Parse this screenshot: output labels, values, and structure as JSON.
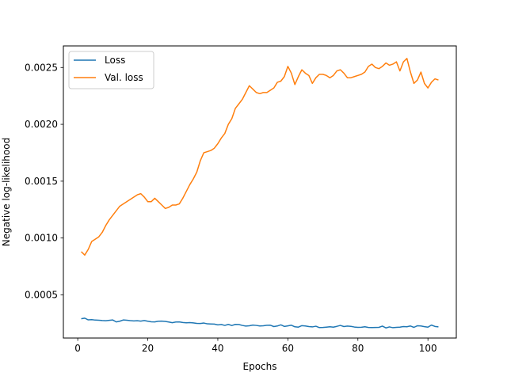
{
  "chart_data": {
    "type": "line",
    "title": "",
    "xlabel": "Epochs",
    "ylabel": "Negative log-likelihood",
    "xlim": [
      -4.1,
      108.1
    ],
    "ylim": [
      0.00012,
      0.00269
    ],
    "x_ticks": [
      0,
      20,
      40,
      60,
      80,
      100
    ],
    "y_ticks": [
      0.0005,
      0.001,
      0.0015,
      0.002,
      0.0025
    ],
    "x_tick_labels": [
      "0",
      "20",
      "40",
      "60",
      "80",
      "100"
    ],
    "y_tick_labels": [
      "0.0005",
      "0.0010",
      "0.0015",
      "0.0020",
      "0.0025"
    ],
    "grid": false,
    "legend_position": "top-left",
    "series": [
      {
        "name": "Loss",
        "color": "#1f77b4",
        "x": [
          1,
          2,
          3,
          4,
          5,
          6,
          7,
          8,
          9,
          10,
          11,
          12,
          13,
          14,
          15,
          16,
          17,
          18,
          19,
          20,
          21,
          22,
          23,
          24,
          25,
          26,
          27,
          28,
          29,
          30,
          31,
          32,
          33,
          34,
          35,
          36,
          37,
          38,
          39,
          40,
          41,
          42,
          43,
          44,
          45,
          46,
          47,
          48,
          49,
          50,
          51,
          52,
          53,
          54,
          55,
          56,
          57,
          58,
          59,
          60,
          61,
          62,
          63,
          64,
          65,
          66,
          67,
          68,
          69,
          70,
          71,
          72,
          73,
          74,
          75,
          76,
          77,
          78,
          79,
          80,
          81,
          82,
          83,
          84,
          85,
          86,
          87,
          88,
          89,
          90,
          91,
          92,
          93,
          94,
          95,
          96,
          97,
          98,
          99,
          100,
          101,
          102,
          103
        ],
        "values": [
          0.00029,
          0.000295,
          0.00028,
          0.000282,
          0.000278,
          0.000277,
          0.000274,
          0.000272,
          0.000276,
          0.000279,
          0.000262,
          0.000268,
          0.000279,
          0.000277,
          0.000273,
          0.000271,
          0.000272,
          0.000269,
          0.000274,
          0.000268,
          0.000263,
          0.000262,
          0.000268,
          0.000269,
          0.000266,
          0.000261,
          0.000255,
          0.000261,
          0.000262,
          0.000257,
          0.000254,
          0.000256,
          0.000253,
          0.000249,
          0.000248,
          0.000252,
          0.000245,
          0.000244,
          0.000243,
          0.000236,
          0.000239,
          0.000231,
          0.00024,
          0.00023,
          0.00024,
          0.000239,
          0.000231,
          0.000225,
          0.000228,
          0.000234,
          0.000231,
          0.000226,
          0.000228,
          0.000232,
          0.000233,
          0.000221,
          0.000226,
          0.000236,
          0.000222,
          0.000227,
          0.000233,
          0.000219,
          0.000216,
          0.000229,
          0.000226,
          0.000221,
          0.000218,
          0.000224,
          0.000212,
          0.000213,
          0.000216,
          0.000219,
          0.000216,
          0.000223,
          0.000231,
          0.000221,
          0.000225,
          0.000223,
          0.000217,
          0.000214,
          0.000215,
          0.000219,
          0.000213,
          0.000212,
          0.000213,
          0.000214,
          0.000225,
          0.000209,
          0.000218,
          0.000211,
          0.000214,
          0.000216,
          0.000221,
          0.000219,
          0.000226,
          0.000214,
          0.000228,
          0.000226,
          0.00022,
          0.000216,
          0.000234,
          0.000222,
          0.000218
        ]
      },
      {
        "name": "Val. loss",
        "color": "#ff7f0e",
        "x": [
          1,
          2,
          3,
          4,
          5,
          6,
          7,
          8,
          9,
          10,
          11,
          12,
          13,
          14,
          15,
          16,
          17,
          18,
          19,
          20,
          21,
          22,
          23,
          24,
          25,
          26,
          27,
          28,
          29,
          30,
          31,
          32,
          33,
          34,
          35,
          36,
          37,
          38,
          39,
          40,
          41,
          42,
          43,
          44,
          45,
          46,
          47,
          48,
          49,
          50,
          51,
          52,
          53,
          54,
          55,
          56,
          57,
          58,
          59,
          60,
          61,
          62,
          63,
          64,
          65,
          66,
          67,
          68,
          69,
          70,
          71,
          72,
          73,
          74,
          75,
          76,
          77,
          78,
          79,
          80,
          81,
          82,
          83,
          84,
          85,
          86,
          87,
          88,
          89,
          90,
          91,
          92,
          93,
          94,
          95,
          96,
          97,
          98,
          99,
          100,
          101,
          102,
          103
        ],
        "values": [
          0.00088,
          0.00085,
          0.0009,
          0.00097,
          0.00099,
          0.00101,
          0.00105,
          0.00111,
          0.00116,
          0.0012,
          0.00124,
          0.00128,
          0.0013,
          0.00132,
          0.00134,
          0.00136,
          0.00138,
          0.00139,
          0.00136,
          0.00132,
          0.00132,
          0.00135,
          0.00132,
          0.00129,
          0.00126,
          0.00127,
          0.00129,
          0.00129,
          0.0013,
          0.00135,
          0.00141,
          0.00147,
          0.00152,
          0.00158,
          0.00168,
          0.00175,
          0.00176,
          0.00177,
          0.00179,
          0.00183,
          0.00188,
          0.00192,
          0.002,
          0.00205,
          0.00214,
          0.00218,
          0.00222,
          0.00228,
          0.00234,
          0.00231,
          0.00228,
          0.00227,
          0.00228,
          0.00228,
          0.0023,
          0.00232,
          0.00237,
          0.00238,
          0.00242,
          0.00251,
          0.00245,
          0.00235,
          0.00242,
          0.00248,
          0.00245,
          0.00243,
          0.00236,
          0.00241,
          0.00244,
          0.00244,
          0.00243,
          0.00241,
          0.00243,
          0.00247,
          0.00248,
          0.00245,
          0.00241,
          0.00241,
          0.00242,
          0.00243,
          0.00244,
          0.00246,
          0.00251,
          0.00253,
          0.0025,
          0.00249,
          0.00251,
          0.00254,
          0.00252,
          0.00253,
          0.00255,
          0.00247,
          0.00255,
          0.00258,
          0.00246,
          0.00236,
          0.00239,
          0.00246,
          0.00236,
          0.00232,
          0.00237,
          0.0024,
          0.00239
        ]
      }
    ]
  }
}
